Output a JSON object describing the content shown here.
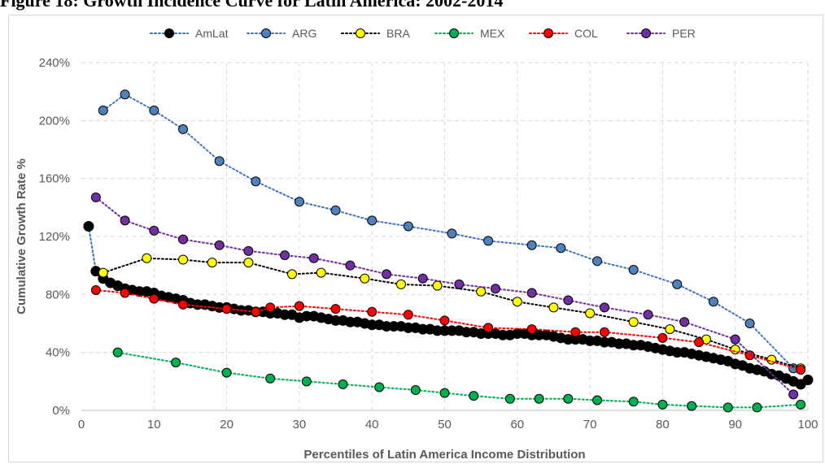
{
  "figure_title": "Figure 18: Growth Incidence Curve for Latin America: 2002-2014",
  "chart_data": {
    "type": "line",
    "title": "",
    "xlabel": "Percentiles of Latin America Income Distribution",
    "ylabel": "Cumulative Growth Rate %",
    "xlim": [
      0,
      100
    ],
    "ylim": [
      0,
      2.4
    ],
    "x_ticks": [
      0,
      10,
      20,
      30,
      40,
      50,
      60,
      70,
      80,
      90,
      100
    ],
    "y_ticks": [
      0,
      0.4,
      0.8,
      1.2,
      1.6,
      2.0,
      2.4
    ],
    "y_tick_labels": [
      "0%",
      "40%",
      "80%",
      "120%",
      "160%",
      "200%",
      "240%"
    ],
    "grid": true,
    "legend_position": "top",
    "series": [
      {
        "name": "AmLat",
        "color": "#2e75b6",
        "marker_color": "#000000",
        "marker_size": 6,
        "points": [
          [
            1,
            1.27
          ],
          [
            2,
            0.96
          ],
          [
            3,
            0.91
          ],
          [
            4,
            0.88
          ],
          [
            5,
            0.86
          ],
          [
            6,
            0.84
          ],
          [
            7,
            0.83
          ],
          [
            8,
            0.82
          ],
          [
            9,
            0.82
          ],
          [
            10,
            0.81
          ],
          [
            11,
            0.79
          ],
          [
            12,
            0.78
          ],
          [
            13,
            0.77
          ],
          [
            14,
            0.76
          ],
          [
            15,
            0.74
          ],
          [
            16,
            0.73
          ],
          [
            17,
            0.73
          ],
          [
            18,
            0.72
          ],
          [
            19,
            0.71
          ],
          [
            20,
            0.71
          ],
          [
            21,
            0.7
          ],
          [
            22,
            0.69
          ],
          [
            23,
            0.69
          ],
          [
            24,
            0.68
          ],
          [
            25,
            0.68
          ],
          [
            26,
            0.67
          ],
          [
            27,
            0.67
          ],
          [
            28,
            0.66
          ],
          [
            29,
            0.66
          ],
          [
            30,
            0.64
          ],
          [
            31,
            0.65
          ],
          [
            32,
            0.65
          ],
          [
            33,
            0.64
          ],
          [
            34,
            0.63
          ],
          [
            35,
            0.62
          ],
          [
            36,
            0.62
          ],
          [
            37,
            0.61
          ],
          [
            38,
            0.61
          ],
          [
            39,
            0.6
          ],
          [
            40,
            0.59
          ],
          [
            41,
            0.59
          ],
          [
            42,
            0.58
          ],
          [
            43,
            0.58
          ],
          [
            44,
            0.58
          ],
          [
            45,
            0.57
          ],
          [
            46,
            0.57
          ],
          [
            47,
            0.56
          ],
          [
            48,
            0.56
          ],
          [
            49,
            0.55
          ],
          [
            50,
            0.55
          ],
          [
            51,
            0.55
          ],
          [
            52,
            0.55
          ],
          [
            53,
            0.54
          ],
          [
            54,
            0.54
          ],
          [
            55,
            0.53
          ],
          [
            56,
            0.53
          ],
          [
            57,
            0.53
          ],
          [
            58,
            0.52
          ],
          [
            59,
            0.52
          ],
          [
            60,
            0.53
          ],
          [
            61,
            0.53
          ],
          [
            62,
            0.52
          ],
          [
            63,
            0.52
          ],
          [
            64,
            0.52
          ],
          [
            65,
            0.51
          ],
          [
            66,
            0.5
          ],
          [
            67,
            0.49
          ],
          [
            68,
            0.49
          ],
          [
            69,
            0.49
          ],
          [
            70,
            0.48
          ],
          [
            71,
            0.48
          ],
          [
            72,
            0.47
          ],
          [
            73,
            0.47
          ],
          [
            74,
            0.46
          ],
          [
            75,
            0.46
          ],
          [
            76,
            0.45
          ],
          [
            77,
            0.45
          ],
          [
            78,
            0.44
          ],
          [
            79,
            0.43
          ],
          [
            80,
            0.42
          ],
          [
            81,
            0.41
          ],
          [
            82,
            0.4
          ],
          [
            83,
            0.4
          ],
          [
            84,
            0.39
          ],
          [
            85,
            0.38
          ],
          [
            86,
            0.37
          ],
          [
            87,
            0.36
          ],
          [
            88,
            0.35
          ],
          [
            89,
            0.34
          ],
          [
            90,
            0.32
          ],
          [
            91,
            0.31
          ],
          [
            92,
            0.29
          ],
          [
            93,
            0.28
          ],
          [
            94,
            0.27
          ],
          [
            95,
            0.25
          ],
          [
            96,
            0.24
          ],
          [
            97,
            0.22
          ],
          [
            98,
            0.2
          ],
          [
            99,
            0.18
          ],
          [
            100,
            0.21
          ]
        ]
      },
      {
        "name": "ARG",
        "color": "#4472c4",
        "marker_color": "#4f81bd",
        "marker_size": 5.5,
        "points": [
          [
            3,
            2.07
          ],
          [
            6,
            2.18
          ],
          [
            10,
            2.07
          ],
          [
            14,
            1.94
          ],
          [
            19,
            1.72
          ],
          [
            24,
            1.58
          ],
          [
            30,
            1.44
          ],
          [
            35,
            1.38
          ],
          [
            40,
            1.31
          ],
          [
            45,
            1.27
          ],
          [
            51,
            1.22
          ],
          [
            56,
            1.17
          ],
          [
            62,
            1.14
          ],
          [
            66,
            1.12
          ],
          [
            71,
            1.03
          ],
          [
            76,
            0.97
          ],
          [
            82,
            0.87
          ],
          [
            87,
            0.75
          ],
          [
            92,
            0.6
          ],
          [
            98,
            0.29
          ]
        ]
      },
      {
        "name": "BRA",
        "color": "#000000",
        "marker_color": "#ffff00",
        "marker_size": 5.5,
        "points": [
          [
            3,
            0.95
          ],
          [
            9,
            1.05
          ],
          [
            14,
            1.04
          ],
          [
            18,
            1.02
          ],
          [
            23,
            1.02
          ],
          [
            29,
            0.94
          ],
          [
            33,
            0.95
          ],
          [
            39,
            0.91
          ],
          [
            44,
            0.87
          ],
          [
            49,
            0.86
          ],
          [
            55,
            0.82
          ],
          [
            60,
            0.75
          ],
          [
            65,
            0.71
          ],
          [
            70,
            0.67
          ],
          [
            76,
            0.61
          ],
          [
            81,
            0.56
          ],
          [
            86,
            0.49
          ],
          [
            90,
            0.42
          ],
          [
            95,
            0.35
          ],
          [
            99,
            0.29
          ]
        ]
      },
      {
        "name": "MEX",
        "color": "#00b050",
        "marker_color": "#00b050",
        "marker_size": 5.5,
        "points": [
          [
            5,
            0.4
          ],
          [
            13,
            0.33
          ],
          [
            20,
            0.26
          ],
          [
            26,
            0.22
          ],
          [
            31,
            0.2
          ],
          [
            36,
            0.18
          ],
          [
            41,
            0.16
          ],
          [
            46,
            0.14
          ],
          [
            50,
            0.12
          ],
          [
            54,
            0.1
          ],
          [
            59,
            0.08
          ],
          [
            63,
            0.08
          ],
          [
            67,
            0.08
          ],
          [
            71,
            0.07
          ],
          [
            76,
            0.06
          ],
          [
            80,
            0.04
          ],
          [
            84,
            0.03
          ],
          [
            89,
            0.02
          ],
          [
            93,
            0.02
          ],
          [
            99,
            0.04
          ]
        ]
      },
      {
        "name": "COL",
        "color": "#ff0000",
        "marker_color": "#ff0000",
        "marker_size": 5.5,
        "points": [
          [
            2,
            0.83
          ],
          [
            6,
            0.81
          ],
          [
            10,
            0.77
          ],
          [
            14,
            0.73
          ],
          [
            20,
            0.7
          ],
          [
            24,
            0.68
          ],
          [
            26,
            0.71
          ],
          [
            30,
            0.72
          ],
          [
            35,
            0.7
          ],
          [
            40,
            0.68
          ],
          [
            45,
            0.66
          ],
          [
            50,
            0.62
          ],
          [
            56,
            0.57
          ],
          [
            62,
            0.56
          ],
          [
            68,
            0.54
          ],
          [
            72,
            0.54
          ],
          [
            80,
            0.5
          ],
          [
            85,
            0.47
          ],
          [
            92,
            0.38
          ],
          [
            99,
            0.28
          ]
        ]
      },
      {
        "name": "PER",
        "color": "#7030a0",
        "marker_color": "#7030a0",
        "marker_size": 5.5,
        "points": [
          [
            2,
            1.47
          ],
          [
            6,
            1.31
          ],
          [
            10,
            1.24
          ],
          [
            14,
            1.18
          ],
          [
            19,
            1.14
          ],
          [
            23,
            1.1
          ],
          [
            28,
            1.07
          ],
          [
            32,
            1.05
          ],
          [
            37,
            1.0
          ],
          [
            42,
            0.94
          ],
          [
            47,
            0.91
          ],
          [
            52,
            0.87
          ],
          [
            57,
            0.84
          ],
          [
            62,
            0.81
          ],
          [
            67,
            0.76
          ],
          [
            72,
            0.71
          ],
          [
            78,
            0.66
          ],
          [
            83,
            0.61
          ],
          [
            90,
            0.49
          ],
          [
            98,
            0.11
          ]
        ]
      }
    ]
  }
}
